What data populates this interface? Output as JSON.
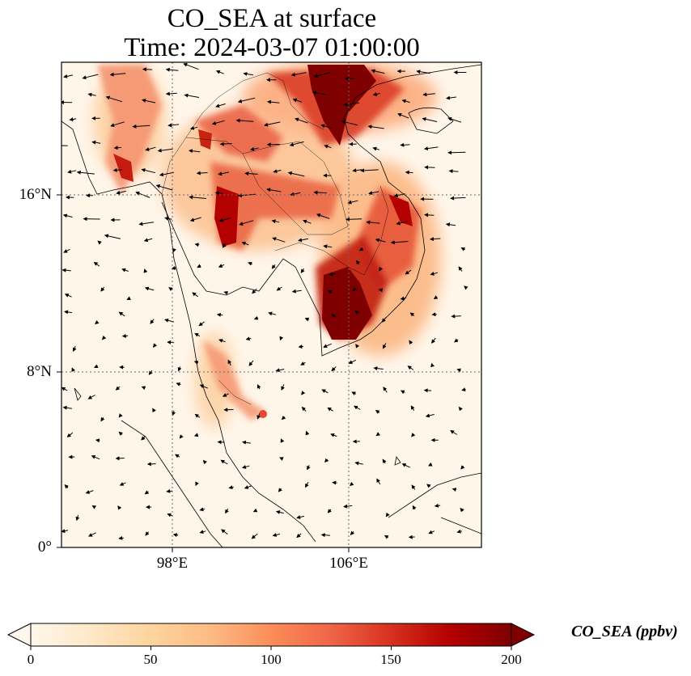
{
  "title": {
    "line1": "CO_SEA at surface",
    "line2": "Time: 2024-03-07 01:00:00"
  },
  "map": {
    "lat_labels": [
      "16°N",
      "8°N",
      "0°"
    ],
    "lon_labels": [
      "98°E",
      "106°E"
    ],
    "lat_range": [
      0,
      22
    ],
    "lon_range": [
      93,
      112
    ],
    "gridlines": "dotted",
    "overlays": [
      "CO_SEA concentration field",
      "wind vectors",
      "coastlines",
      "country borders"
    ]
  },
  "colorbar": {
    "label": "CO_SEA (ppbv)",
    "ticks": [
      "0",
      "50",
      "100",
      "150",
      "200"
    ],
    "range": [
      0,
      200
    ],
    "extend": "both",
    "colormap": "OrRd",
    "stops": [
      "#fff7ec",
      "#fee8c8",
      "#fdd49e",
      "#fdbb84",
      "#fc8d59",
      "#ef6548",
      "#d7301f",
      "#b30000",
      "#7f0000"
    ]
  }
}
